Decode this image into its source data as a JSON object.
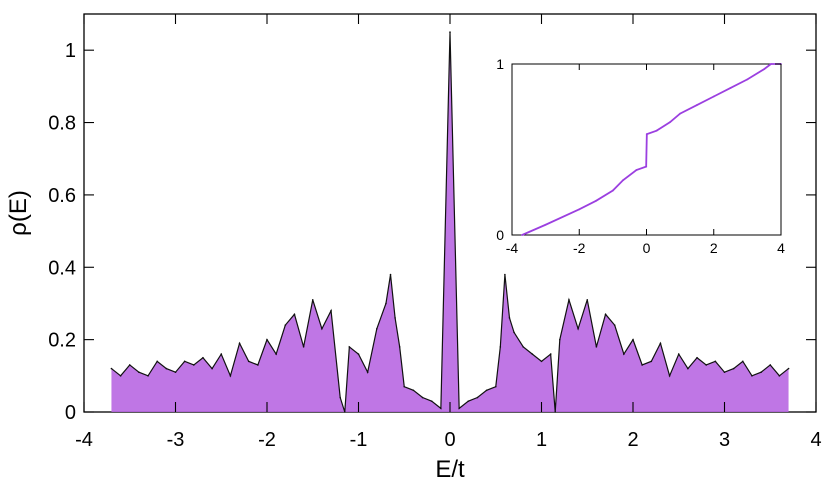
{
  "colors": {
    "main_fill": "#b867e2",
    "main_line": "#111111",
    "inset_line": "#9b3fe0",
    "axis": "#000000",
    "background": "#ffffff"
  },
  "chart_data": [
    {
      "type": "area",
      "title": "",
      "xlabel": "E/t",
      "ylabel": "ρ(E)",
      "xlim": [
        -4,
        4
      ],
      "ylim": [
        0,
        1.1
      ],
      "grid": false,
      "legend": "none",
      "x_ticks": [
        -4,
        -3,
        -2,
        -1,
        0,
        1,
        2,
        3,
        4
      ],
      "x_tick_labels": [
        "-4",
        "-3",
        "-2",
        "-1",
        "0",
        "1",
        "2",
        "3",
        "4"
      ],
      "y_ticks": [
        0,
        0.2,
        0.4,
        0.6,
        0.8,
        1
      ],
      "y_tick_labels": [
        "0",
        "0.2",
        "0.4",
        "0.6",
        "0.8",
        "1"
      ],
      "x": [
        -3.7,
        -3.6,
        -3.5,
        -3.4,
        -3.3,
        -3.2,
        -3.1,
        -3.0,
        -2.9,
        -2.8,
        -2.7,
        -2.6,
        -2.5,
        -2.4,
        -2.3,
        -2.2,
        -2.1,
        -2.0,
        -1.9,
        -1.8,
        -1.7,
        -1.6,
        -1.5,
        -1.4,
        -1.3,
        -1.2,
        -1.15,
        -1.1,
        -1.0,
        -0.9,
        -0.8,
        -0.7,
        -0.65,
        -0.6,
        -0.55,
        -0.5,
        -0.4,
        -0.3,
        -0.2,
        -0.1,
        0.0,
        0.1,
        0.2,
        0.3,
        0.4,
        0.5,
        0.55,
        0.6,
        0.65,
        0.7,
        0.8,
        0.9,
        1.0,
        1.1,
        1.15,
        1.2,
        1.3,
        1.4,
        1.5,
        1.6,
        1.7,
        1.8,
        1.9,
        2.0,
        2.1,
        2.2,
        2.3,
        2.4,
        2.5,
        2.6,
        2.7,
        2.8,
        2.9,
        3.0,
        3.1,
        3.2,
        3.3,
        3.4,
        3.5,
        3.6,
        3.7
      ],
      "y": [
        0.12,
        0.1,
        0.13,
        0.11,
        0.1,
        0.14,
        0.12,
        0.11,
        0.14,
        0.13,
        0.15,
        0.12,
        0.16,
        0.1,
        0.19,
        0.14,
        0.13,
        0.2,
        0.16,
        0.24,
        0.27,
        0.18,
        0.31,
        0.23,
        0.28,
        0.04,
        0.0,
        0.18,
        0.16,
        0.11,
        0.23,
        0.3,
        0.38,
        0.26,
        0.18,
        0.07,
        0.06,
        0.04,
        0.03,
        0.01,
        1.05,
        0.01,
        0.03,
        0.04,
        0.06,
        0.07,
        0.18,
        0.38,
        0.26,
        0.22,
        0.18,
        0.16,
        0.14,
        0.16,
        0.0,
        0.2,
        0.31,
        0.23,
        0.31,
        0.18,
        0.27,
        0.24,
        0.16,
        0.2,
        0.13,
        0.14,
        0.19,
        0.1,
        0.16,
        0.12,
        0.15,
        0.13,
        0.14,
        0.11,
        0.12,
        0.14,
        0.1,
        0.11,
        0.13,
        0.1,
        0.12
      ]
    },
    {
      "type": "line",
      "title": "",
      "xlabel": "",
      "ylabel": "",
      "xlim": [
        -4,
        4
      ],
      "ylim": [
        0,
        1
      ],
      "grid": false,
      "legend": "none",
      "x_ticks": [
        -4,
        -2,
        0,
        2,
        4
      ],
      "x_tick_labels": [
        "-4",
        "-2",
        "0",
        "2",
        "4"
      ],
      "y_ticks": [
        0,
        1
      ],
      "y_tick_labels": [
        "0",
        "1"
      ],
      "x": [
        -3.7,
        -3.0,
        -2.0,
        -1.5,
        -1.0,
        -0.7,
        -0.3,
        -0.01,
        0.01,
        0.3,
        0.7,
        1.0,
        1.5,
        2.0,
        2.5,
        3.0,
        3.5,
        3.7,
        4.0
      ],
      "y": [
        0.0,
        0.06,
        0.15,
        0.2,
        0.26,
        0.32,
        0.38,
        0.4,
        0.59,
        0.61,
        0.66,
        0.71,
        0.76,
        0.81,
        0.86,
        0.91,
        0.97,
        1.0,
        1.0
      ]
    }
  ]
}
